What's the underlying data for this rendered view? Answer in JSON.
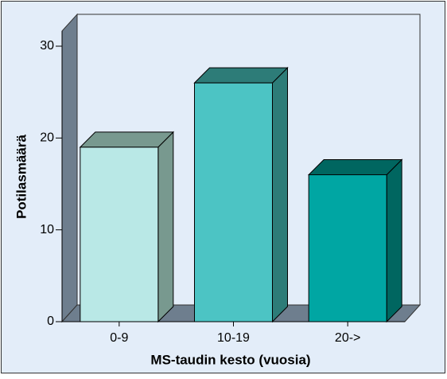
{
  "chart_data": {
    "type": "bar3d",
    "x_label": "MS-taudin kesto (vuosia)",
    "y_label": "Potilasmäärä",
    "categories": [
      "0-9",
      "10-19",
      "20->"
    ],
    "values": [
      19,
      26,
      16
    ],
    "colors": [
      "#b9e8e6",
      "#4cc4c4",
      "#00a6a3"
    ],
    "shade_colors": [
      "#78998f",
      "#2d7c78",
      "#006660"
    ],
    "ylim": [
      0,
      30
    ],
    "yticks": [
      0,
      10,
      20,
      30
    ],
    "grid": false
  }
}
